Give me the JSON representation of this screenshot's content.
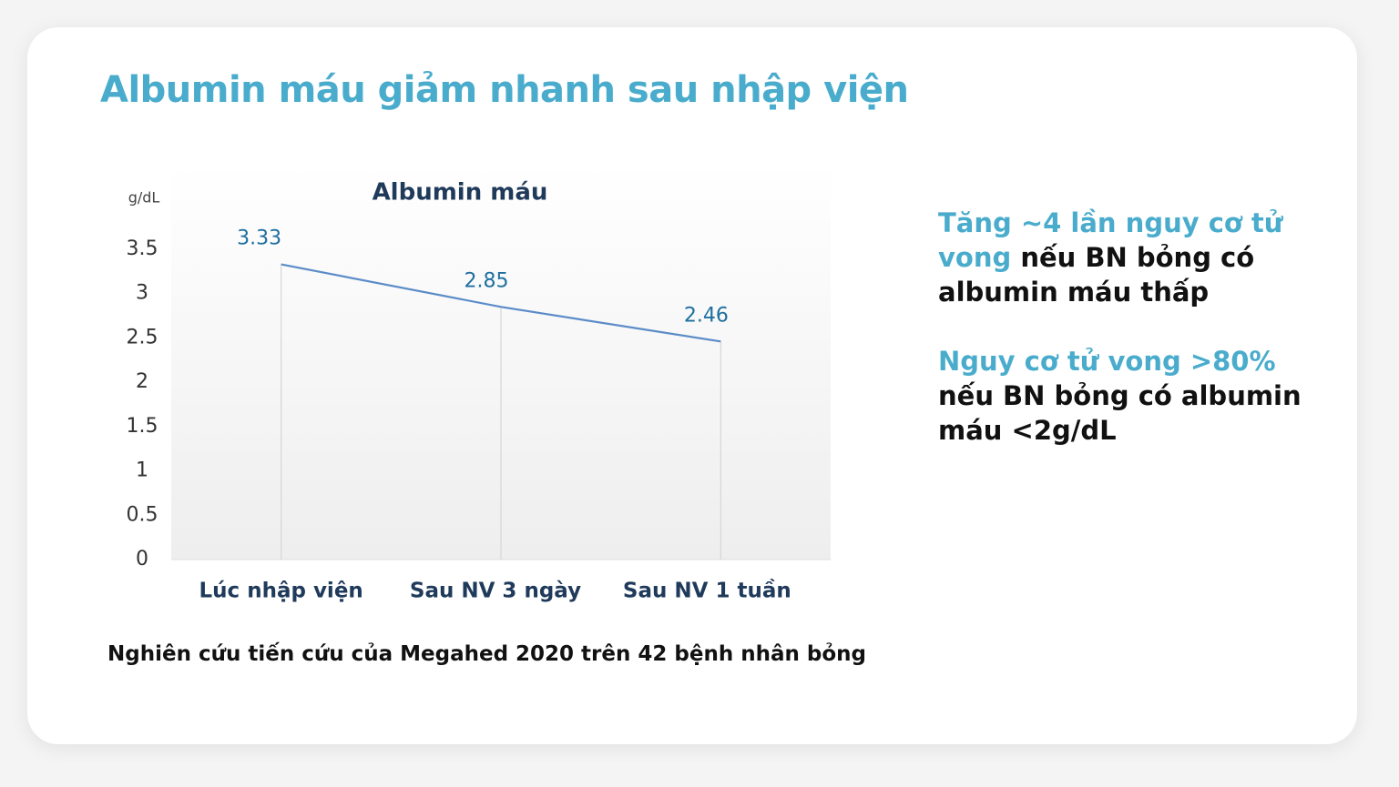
{
  "heading": "Albumin máu giảm nhanh sau nhập viện",
  "chart_data": {
    "type": "line",
    "title": "Albumin máu",
    "y_label": "g/dL",
    "categories": [
      "Lúc nhập viện",
      "Sau NV 3 ngày",
      "Sau NV 1 tuần"
    ],
    "values": [
      3.33,
      2.85,
      2.46
    ],
    "color": "#5b8cc8",
    "ylim": [
      0,
      3.5
    ],
    "yticks": [
      0,
      0.5,
      1,
      1.5,
      2,
      2.5,
      3,
      3.5
    ],
    "grid": false
  },
  "notes": [
    {
      "highlight": "Tăng ~4 lần nguy cơ tử vong",
      "text": "nếu BN bỏng có albumin máu thấp"
    },
    {
      "highlight": "Nguy cơ tử vong >80%",
      "text": "nếu BN bỏng có albumin máu <2g/dL"
    }
  ],
  "footnote": "Nghiên cứu tiến cứu của Megahed 2020 trên 42 bệnh nhân bỏng"
}
